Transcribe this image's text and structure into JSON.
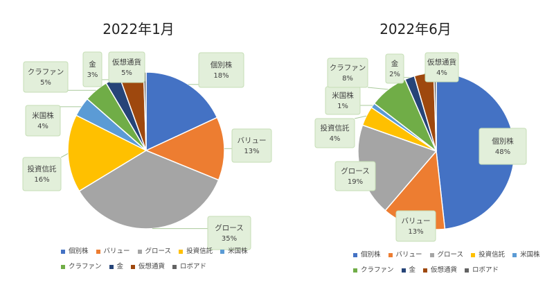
{
  "chart_data": [
    {
      "type": "pie",
      "title": "2022年1月",
      "categories": [
        "個別株",
        "バリュー",
        "グロース",
        "投資信託",
        "米国株",
        "クラファン",
        "金",
        "仮想通貨",
        "ロボアド"
      ],
      "values": [
        18,
        13,
        35,
        16,
        4,
        5,
        3,
        5,
        0.5
      ],
      "data_labels": [
        {
          "category": "個別株",
          "text": "18%"
        },
        {
          "category": "バリュー",
          "text": "13%"
        },
        {
          "category": "グロース",
          "text": "35%"
        },
        {
          "category": "投資信託",
          "text": "16%"
        },
        {
          "category": "米国株",
          "text": "4%"
        },
        {
          "category": "クラファン",
          "text": "5%"
        },
        {
          "category": "金",
          "text": "3%"
        },
        {
          "category": "仮想通貨",
          "text": "5%"
        }
      ],
      "legend_placement": "bottom"
    },
    {
      "type": "pie",
      "title": "2022年6月",
      "categories": [
        "個別株",
        "バリュー",
        "グロース",
        "投資信託",
        "米国株",
        "クラファン",
        "金",
        "仮想通貨",
        "ロボアド"
      ],
      "values": [
        48,
        13,
        19,
        4,
        1,
        8,
        2,
        4,
        0.5
      ],
      "data_labels": [
        {
          "category": "個別株",
          "text": "48%"
        },
        {
          "category": "バリュー",
          "text": "13%"
        },
        {
          "category": "グロース",
          "text": "19%"
        },
        {
          "category": "投資信託",
          "text": "4%"
        },
        {
          "category": "米国株",
          "text": "1%"
        },
        {
          "category": "クラファン",
          "text": "8%"
        },
        {
          "category": "金",
          "text": "2%"
        },
        {
          "category": "仮想通貨",
          "text": "4%"
        }
      ],
      "legend_placement": "bottom"
    }
  ],
  "colors": {
    "個別株": "#4472C4",
    "バリュー": "#ED7D31",
    "グロース": "#A5A5A5",
    "投資信託": "#FFC000",
    "米国株": "#5B9BD5",
    "クラファン": "#70AD47",
    "金": "#264478",
    "仮想通貨": "#9E480E",
    "ロボアド": "#636363"
  },
  "callout_style": {
    "fill": "#E2EFDA",
    "border": "#C5DEB5"
  }
}
